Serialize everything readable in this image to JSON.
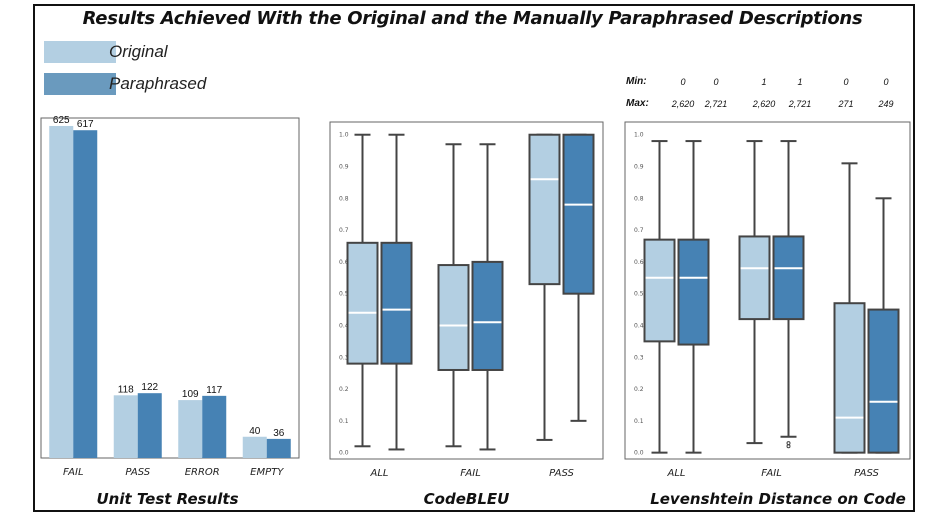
{
  "title": "Results Achieved With the Original and the Manually Paraphrased Descriptions",
  "legend": {
    "original": "Original",
    "paraphrased": "Paraphrased"
  },
  "colors": {
    "original": "#b3cfe2",
    "paraphrased": "#4682b4",
    "legend_paraphrased": "#6a9abe",
    "median_line": "#ffffff",
    "box_edge": "#444444"
  },
  "minmax": {
    "min_label": "Min:",
    "max_label": "Max:",
    "min": [
      "0",
      "0",
      "1",
      "1",
      "0",
      "0"
    ],
    "max": [
      "2,620",
      "2,721",
      "2,620",
      "2,721",
      "271",
      "249"
    ]
  },
  "chart_data": [
    {
      "type": "bar",
      "title": "Unit Test Results",
      "categories": [
        "FAIL",
        "PASS",
        "ERROR",
        "EMPTY"
      ],
      "series": [
        {
          "name": "Original",
          "values": [
            625,
            118,
            109,
            40
          ],
          "labels": [
            "625",
            "118",
            "109",
            "40"
          ]
        },
        {
          "name": "Paraphrased",
          "values": [
            617,
            122,
            117,
            36
          ],
          "labels": [
            "617",
            "122",
            "117",
            "36"
          ]
        }
      ],
      "ylim": [
        0,
        640
      ]
    },
    {
      "type": "box",
      "title": "CodeBLEU",
      "categories": [
        "ALL",
        "FAIL",
        "PASS"
      ],
      "yticks": [
        "0.0",
        "0.1",
        "0.2",
        "0.3",
        "0.4",
        "0.5",
        "0.6",
        "0.7",
        "0.8",
        "0.9",
        "1.0"
      ],
      "ylim": [
        -0.02,
        1.04
      ],
      "series": [
        {
          "name": "Original",
          "boxes": [
            {
              "min": 0.02,
              "q1": 0.28,
              "median": 0.44,
              "q3": 0.66,
              "max": 1.0
            },
            {
              "min": 0.02,
              "q1": 0.26,
              "median": 0.4,
              "q3": 0.59,
              "max": 0.97
            },
            {
              "min": 0.04,
              "q1": 0.53,
              "median": 0.86,
              "q3": 1.0,
              "max": 1.0
            }
          ]
        },
        {
          "name": "Paraphrased",
          "boxes": [
            {
              "min": 0.01,
              "q1": 0.28,
              "median": 0.45,
              "q3": 0.66,
              "max": 1.0
            },
            {
              "min": 0.01,
              "q1": 0.26,
              "median": 0.41,
              "q3": 0.6,
              "max": 0.97
            },
            {
              "min": 0.1,
              "q1": 0.5,
              "median": 0.78,
              "q3": 1.0,
              "max": 1.0
            }
          ]
        }
      ]
    },
    {
      "type": "box",
      "title": "Levenshtein Distance on Code",
      "categories": [
        "ALL",
        "FAIL",
        "PASS"
      ],
      "yticks": [
        "0.0",
        "0.1",
        "0.2",
        "0.3",
        "0.4",
        "0.5",
        "0.6",
        "0.7",
        "0.8",
        "0.9",
        "1.0"
      ],
      "ylim": [
        -0.02,
        1.04
      ],
      "series": [
        {
          "name": "Original",
          "boxes": [
            {
              "min": 0.0,
              "q1": 0.35,
              "median": 0.55,
              "q3": 0.67,
              "max": 0.98
            },
            {
              "min": 0.03,
              "q1": 0.42,
              "median": 0.58,
              "q3": 0.68,
              "max": 0.98
            },
            {
              "min": 0.0,
              "q1": 0.0,
              "median": 0.11,
              "q3": 0.47,
              "max": 0.91
            }
          ]
        },
        {
          "name": "Paraphrased",
          "boxes": [
            {
              "min": 0.0,
              "q1": 0.34,
              "median": 0.55,
              "q3": 0.67,
              "max": 0.98
            },
            {
              "min": 0.05,
              "q1": 0.42,
              "median": 0.58,
              "q3": 0.68,
              "max": 0.98,
              "outliers": [
                0.03,
                0.02
              ]
            },
            {
              "min": 0.0,
              "q1": 0.0,
              "median": 0.16,
              "q3": 0.45,
              "max": 0.8
            }
          ]
        }
      ]
    }
  ]
}
